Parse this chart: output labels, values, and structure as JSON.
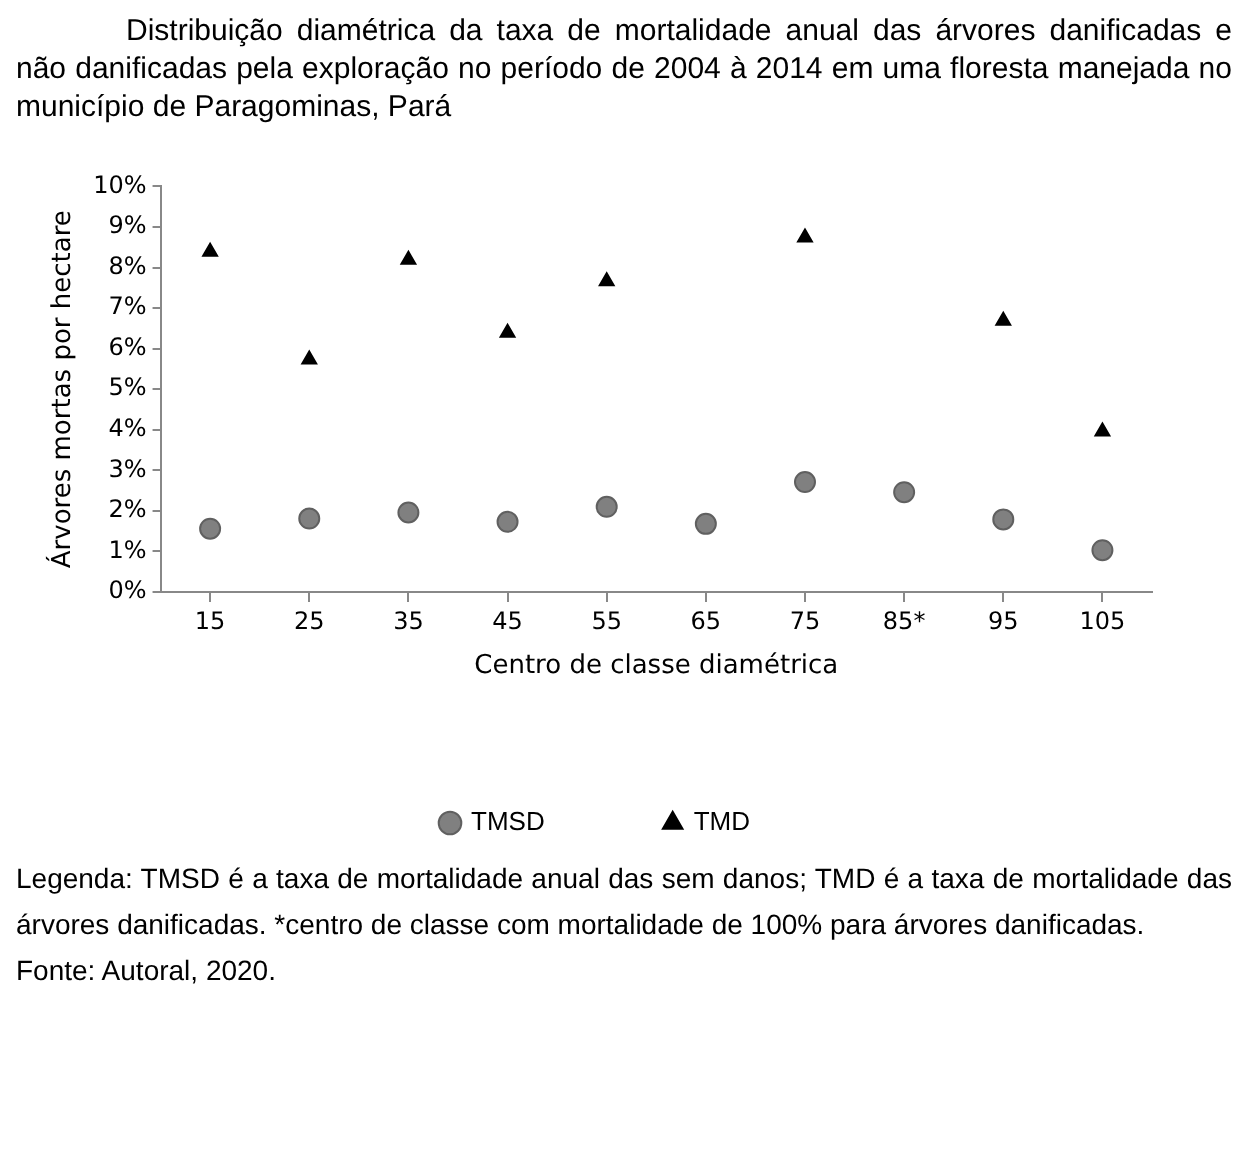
{
  "chart_data": {
    "type": "scatter",
    "title": "Distribuição diamétrica da taxa de mortalidade anual das árvores danificadas e não danificadas pela exploração no período de 2004 à 2014 em uma floresta manejada no município de Paragominas, Pará",
    "xlabel": "Centro de classe diamétrica",
    "ylabel": "Árvores mortas por hectare",
    "categories": [
      "15",
      "25",
      "35",
      "45",
      "55",
      "65",
      "75",
      "85*",
      "95",
      "105"
    ],
    "series": [
      {
        "name": "TMSD",
        "color": "#808080",
        "marker": "circle",
        "values": [
          1.56,
          1.81,
          1.96,
          1.73,
          2.1,
          1.68,
          2.71,
          2.46,
          1.79,
          1.03
        ]
      },
      {
        "name": "TMD",
        "color": "#000000",
        "marker": "triangle",
        "values": [
          8.39,
          5.73,
          8.19,
          6.39,
          7.66,
          null,
          8.74,
          null,
          6.69,
          3.96
        ]
      }
    ],
    "ylim": [
      0,
      10
    ],
    "yticks": [
      {
        "value": 0,
        "label": "0%"
      },
      {
        "value": 1,
        "label": "1%"
      },
      {
        "value": 2,
        "label": "2%"
      },
      {
        "value": 3,
        "label": "3%"
      },
      {
        "value": 4,
        "label": "4%"
      },
      {
        "value": 5,
        "label": "5%"
      },
      {
        "value": 6,
        "label": "6%"
      },
      {
        "value": 7,
        "label": "7%"
      },
      {
        "value": 8,
        "label": "8%"
      },
      {
        "value": 9,
        "label": "9%"
      },
      {
        "value": 10,
        "label": "10%"
      }
    ],
    "grid": false,
    "legend": "bottom",
    "annotations": [
      "Legenda: TMSD é a taxa de mortalidade anual das sem danos; TMD é a taxa de mortalidade das árvores danificadas. *centro de classe com mortalidade de 100% para árvores danificadas.",
      "Fonte: Autoral, 2020."
    ]
  }
}
